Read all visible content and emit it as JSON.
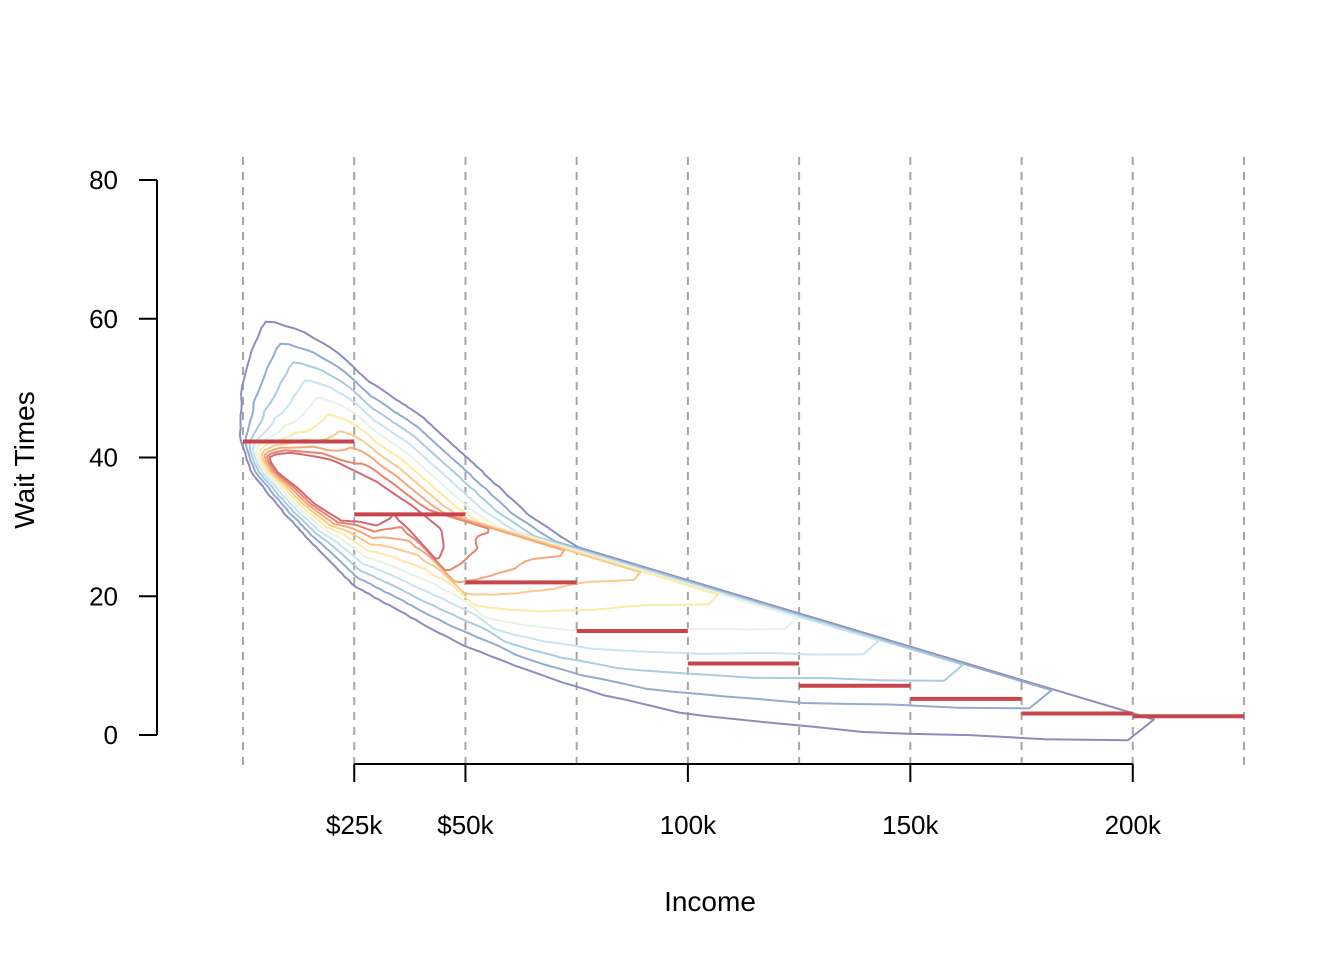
{
  "chart_data": {
    "type": "line",
    "xlabel": "Income",
    "ylabel": "Wait Times",
    "x_unit": "USD (thousands)",
    "xlim": [
      0,
      225
    ],
    "ylim": [
      0,
      80
    ],
    "y_ticks": [
      0,
      20,
      40,
      60,
      80
    ],
    "y_tick_labels": [
      "0",
      "20",
      "40",
      "60",
      "80"
    ],
    "x_ticks": [
      25,
      50,
      100,
      150,
      200
    ],
    "x_tick_labels": [
      "$25k",
      "$50k",
      "100k",
      "150k",
      "200k"
    ],
    "x_axis_range": [
      25,
      200
    ],
    "bin_edges": [
      0,
      25,
      50,
      75,
      100,
      125,
      150,
      175,
      200,
      225
    ],
    "bin_means": [
      {
        "x0": 0,
        "x1": 25,
        "y": 42.3
      },
      {
        "x0": 25,
        "x1": 50,
        "y": 31.8
      },
      {
        "x0": 50,
        "x1": 75,
        "y": 22.0
      },
      {
        "x0": 75,
        "x1": 100,
        "y": 15.0
      },
      {
        "x0": 100,
        "x1": 125,
        "y": 10.3
      },
      {
        "x0": 125,
        "x1": 150,
        "y": 7.1
      },
      {
        "x0": 150,
        "x1": 175,
        "y": 5.2
      },
      {
        "x0": 175,
        "x1": 200,
        "y": 3.1
      },
      {
        "x0": 200,
        "x1": 225,
        "y": 2.7
      }
    ],
    "density_contours": {
      "levels": 10,
      "peak": {
        "x": 32,
        "y": 34
      },
      "colors": [
        "#8e8cbc",
        "#93acce",
        "#a9cce0",
        "#c9e3ef",
        "#e8f3e6",
        "#fdeaa6",
        "#fcc98a",
        "#f6a67b",
        "#e8836f",
        "#cf6a73"
      ],
      "outer_contour": [
        [
          5,
          59.5
        ],
        [
          12,
          58.3
        ],
        [
          20,
          55.5
        ],
        [
          28,
          51
        ],
        [
          40,
          46
        ],
        [
          52,
          39
        ],
        [
          65,
          31
        ],
        [
          80,
          24.5
        ],
        [
          100,
          19.5
        ],
        [
          115,
          16
        ],
        [
          130,
          12.5
        ],
        [
          150,
          10
        ],
        [
          175,
          7.5
        ],
        [
          190,
          5.5
        ],
        [
          200,
          3.5
        ],
        [
          205,
          2.3
        ],
        [
          200,
          1
        ],
        [
          185,
          0.7
        ],
        [
          175,
          1.5
        ],
        [
          160,
          1.3
        ],
        [
          140,
          1.6
        ],
        [
          120,
          2.7
        ],
        [
          100,
          3.8
        ],
        [
          80,
          6.5
        ],
        [
          65,
          9.5
        ],
        [
          50,
          13
        ],
        [
          35,
          18
        ],
        [
          25,
          21.5
        ],
        [
          15,
          28
        ],
        [
          8,
          33
        ],
        [
          2,
          38
        ],
        [
          -0.5,
          43
        ],
        [
          0,
          50
        ],
        [
          2,
          55
        ],
        [
          5,
          59.5
        ]
      ],
      "inner_contour": [
        [
          6,
          40
        ],
        [
          8,
          38
        ],
        [
          12,
          36
        ],
        [
          16,
          33.5
        ],
        [
          22,
          31
        ],
        [
          26,
          30.8
        ],
        [
          30,
          30.2
        ],
        [
          33,
          31.2
        ],
        [
          34,
          32
        ],
        [
          35,
          31
        ],
        [
          37,
          30
        ],
        [
          40,
          27.8
        ],
        [
          42,
          27
        ],
        [
          43,
          25.5
        ],
        [
          44,
          25.5
        ],
        [
          45,
          27
        ],
        [
          44.5,
          29.5
        ],
        [
          38,
          33
        ],
        [
          30,
          36.5
        ],
        [
          25,
          38
        ],
        [
          20,
          39.5
        ],
        [
          16,
          40
        ],
        [
          10,
          40.5
        ],
        [
          6,
          40
        ]
      ]
    },
    "reference_lines": "dashed vertical lines at each bin edge",
    "grid": false,
    "legend": "none"
  }
}
